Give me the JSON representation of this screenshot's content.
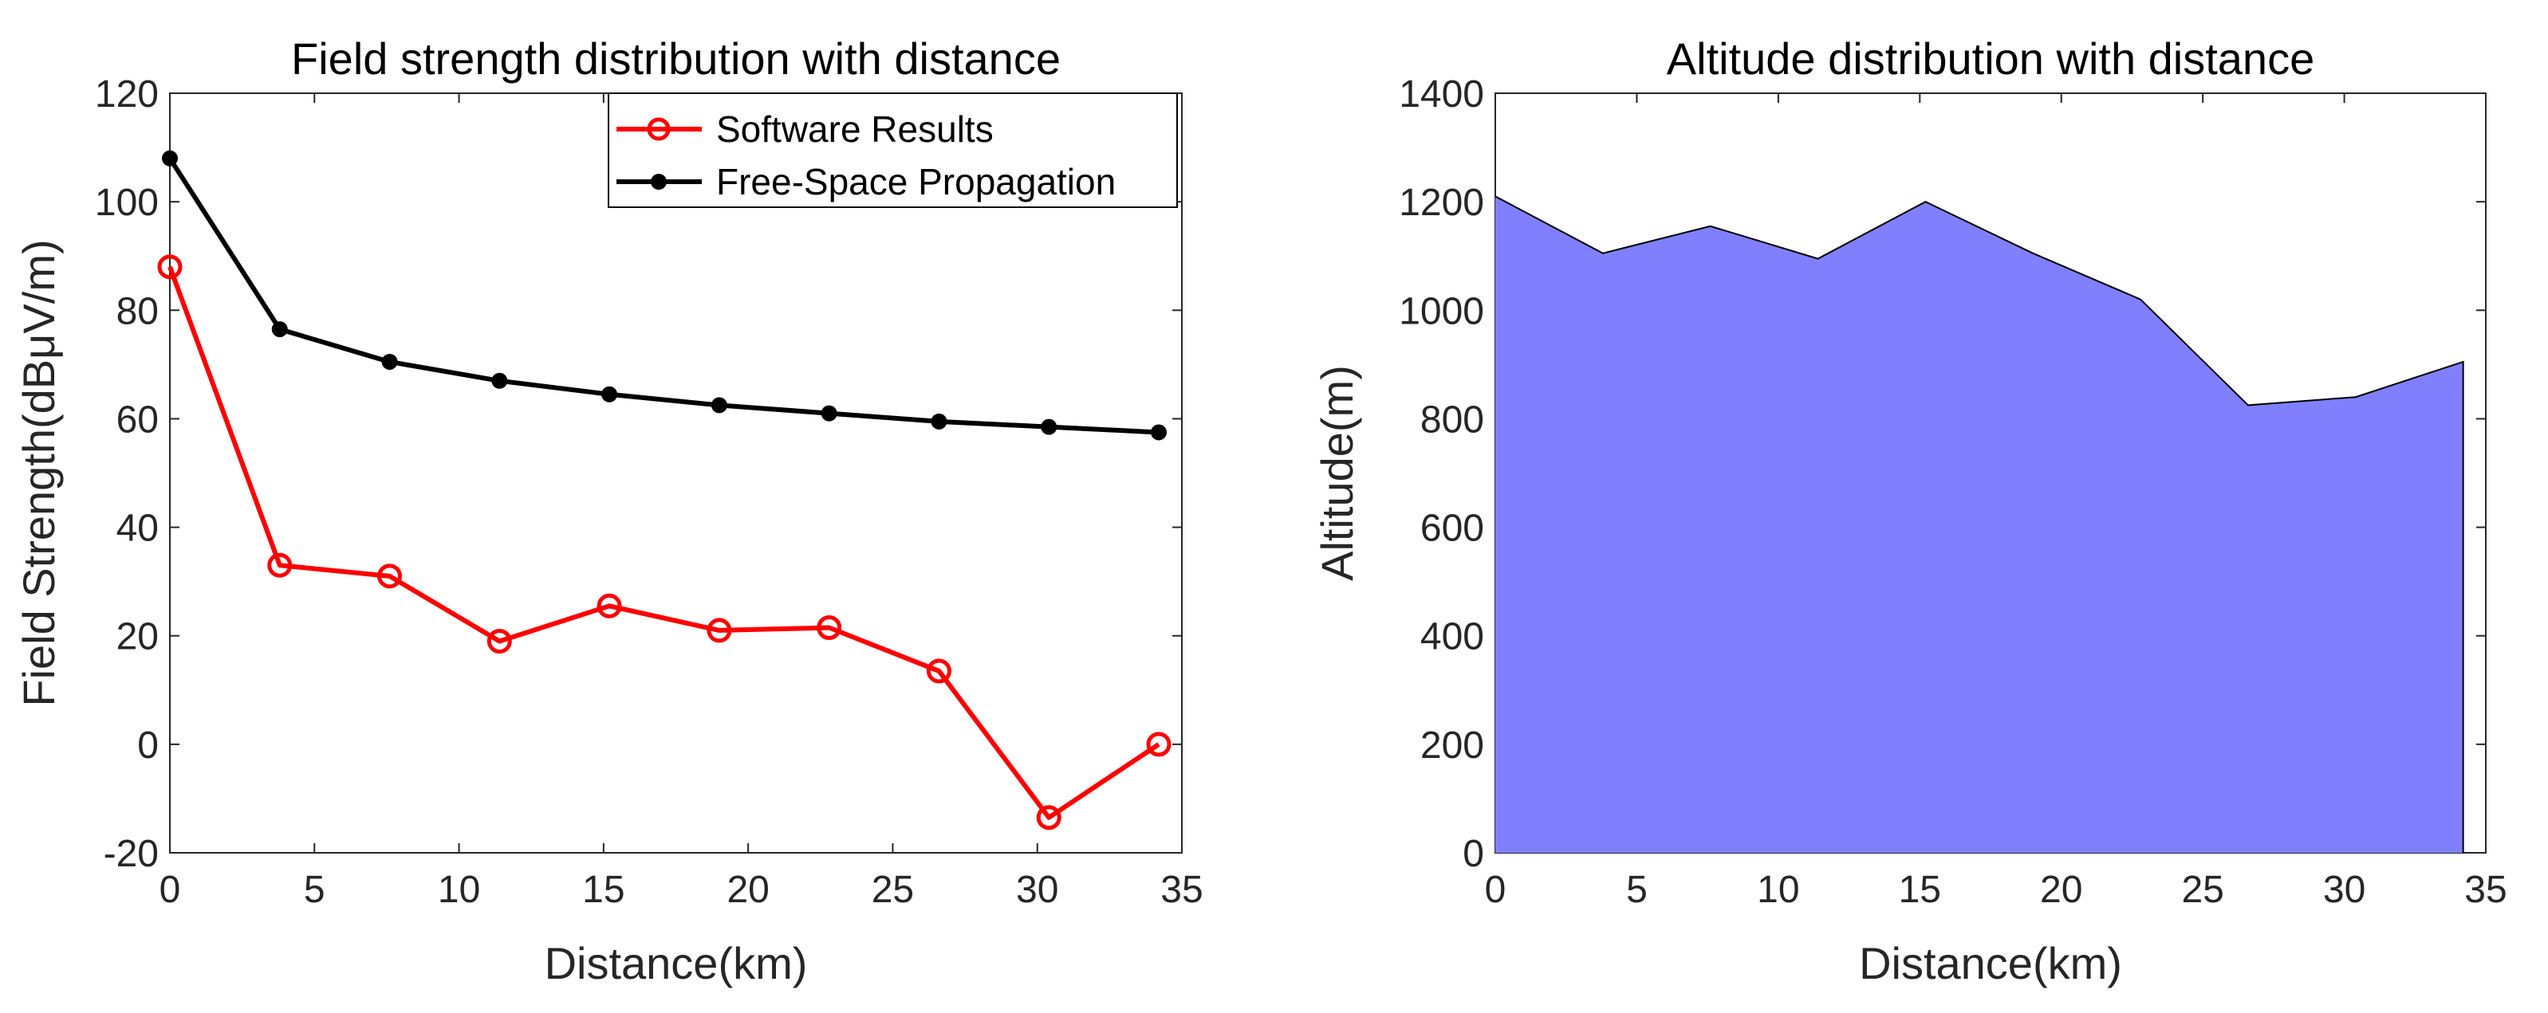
{
  "colors": {
    "software": "#ff0000",
    "freespace": "#000000",
    "area_fill": "#8080ff",
    "area_edge": "#000000",
    "axis": "#262626"
  },
  "chart_data": [
    {
      "type": "line",
      "title": "Field strength distribution with distance",
      "xlabel": "Distance(km)",
      "ylabel": "Field Strength(dBμV/m)",
      "xlim": [
        0,
        35
      ],
      "ylim": [
        -20,
        120
      ],
      "xticks": [
        0,
        5,
        10,
        15,
        20,
        25,
        30,
        35
      ],
      "yticks": [
        -20,
        0,
        20,
        40,
        60,
        80,
        100,
        120
      ],
      "legend_position": "top-right",
      "x": [
        0,
        3.8,
        7.6,
        11.4,
        15.2,
        19.0,
        22.8,
        26.6,
        30.4,
        34.2
      ],
      "series": [
        {
          "name": "Software Results",
          "marker": "circle-open",
          "color": "#ff0000",
          "values": [
            88,
            33,
            31,
            19,
            25.5,
            21,
            21.5,
            13.5,
            -13.5,
            0
          ]
        },
        {
          "name": "Free-Space Propagation",
          "marker": "dot",
          "color": "#000000",
          "values": [
            108,
            76.5,
            70.5,
            67,
            64.5,
            62.5,
            61,
            59.5,
            58.5,
            57.5
          ]
        }
      ]
    },
    {
      "type": "area",
      "title": "Altitude distribution with distance",
      "xlabel": "Distance(km)",
      "ylabel": "Altitude(m)",
      "xlim": [
        0,
        35
      ],
      "ylim": [
        0,
        1400
      ],
      "xticks": [
        0,
        5,
        10,
        15,
        20,
        25,
        30,
        35
      ],
      "yticks": [
        0,
        200,
        400,
        600,
        800,
        1000,
        1200,
        1400
      ],
      "x": [
        0,
        3.8,
        7.6,
        11.4,
        15.2,
        19.0,
        22.8,
        26.6,
        30.4,
        34.2
      ],
      "series": [
        {
          "name": "Altitude",
          "color": "#8080ff",
          "values": [
            1210,
            1105,
            1155,
            1095,
            1200,
            1105,
            1020,
            825,
            840,
            905
          ]
        }
      ]
    }
  ]
}
